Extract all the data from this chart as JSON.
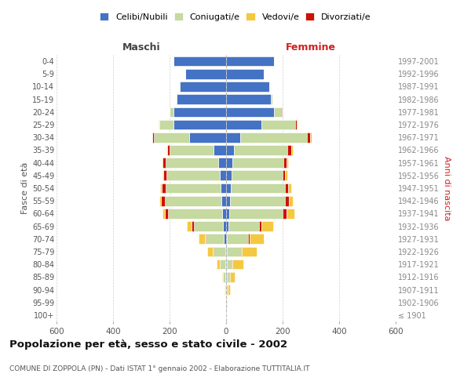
{
  "age_groups": [
    "100+",
    "95-99",
    "90-94",
    "85-89",
    "80-84",
    "75-79",
    "70-74",
    "65-69",
    "60-64",
    "55-59",
    "50-54",
    "45-49",
    "40-44",
    "35-39",
    "30-34",
    "25-29",
    "20-24",
    "15-19",
    "10-14",
    "5-9",
    "0-4"
  ],
  "birth_years": [
    "≤ 1901",
    "1902-1906",
    "1907-1911",
    "1912-1916",
    "1917-1921",
    "1922-1926",
    "1927-1931",
    "1932-1936",
    "1937-1941",
    "1942-1946",
    "1947-1951",
    "1952-1956",
    "1957-1961",
    "1962-1966",
    "1967-1971",
    "1972-1976",
    "1977-1981",
    "1982-1986",
    "1987-1991",
    "1992-1996",
    "1997-2001"
  ],
  "males": {
    "celibe": [
      0,
      0,
      1,
      2,
      3,
      4,
      7,
      10,
      15,
      18,
      20,
      22,
      28,
      45,
      130,
      185,
      185,
      175,
      165,
      145,
      185
    ],
    "coniugato": [
      0,
      1,
      3,
      8,
      18,
      40,
      65,
      105,
      190,
      200,
      195,
      190,
      185,
      155,
      125,
      50,
      15,
      2,
      1,
      0,
      0
    ],
    "vedovo": [
      0,
      0,
      1,
      5,
      12,
      22,
      22,
      18,
      8,
      7,
      5,
      3,
      2,
      2,
      2,
      1,
      0,
      0,
      0,
      0,
      0
    ],
    "divorziato": [
      0,
      0,
      0,
      0,
      1,
      2,
      3,
      7,
      12,
      12,
      12,
      10,
      12,
      8,
      5,
      2,
      1,
      0,
      0,
      0,
      0
    ]
  },
  "females": {
    "nubile": [
      0,
      0,
      1,
      2,
      2,
      3,
      4,
      7,
      10,
      14,
      18,
      20,
      22,
      28,
      50,
      125,
      170,
      158,
      152,
      132,
      170
    ],
    "coniugata": [
      0,
      1,
      4,
      10,
      18,
      50,
      75,
      110,
      190,
      195,
      190,
      180,
      182,
      190,
      235,
      120,
      28,
      5,
      2,
      0,
      0
    ],
    "vedova": [
      1,
      2,
      8,
      18,
      38,
      52,
      50,
      42,
      28,
      14,
      10,
      8,
      5,
      5,
      5,
      3,
      1,
      0,
      0,
      0,
      0
    ],
    "divorziata": [
      0,
      0,
      0,
      1,
      2,
      3,
      4,
      7,
      14,
      12,
      12,
      8,
      10,
      12,
      12,
      5,
      2,
      1,
      0,
      0,
      0
    ]
  },
  "colors": {
    "celibe_nubile": "#4472C4",
    "coniugato_coniugata": "#c5d9a0",
    "vedovo_vedova": "#f5c842",
    "divorziato_divorziata": "#cc1100"
  },
  "title": "Popolazione per età, sesso e stato civile - 2002",
  "subtitle": "COMUNE DI ZOPPOLA (PN) - Dati ISTAT 1° gennaio 2002 - Elaborazione TUTTITALIA.IT",
  "xlabel_left": "Maschi",
  "xlabel_right": "Femmine",
  "ylabel_left": "Fasce di età",
  "ylabel_right": "Anni di nascita",
  "xlim": 600,
  "bg_color": "#ffffff",
  "grid_color": "#cccccc",
  "legend_labels": [
    "Celibi/Nubili",
    "Coniugati/e",
    "Vedovi/e",
    "Divorziati/e"
  ]
}
